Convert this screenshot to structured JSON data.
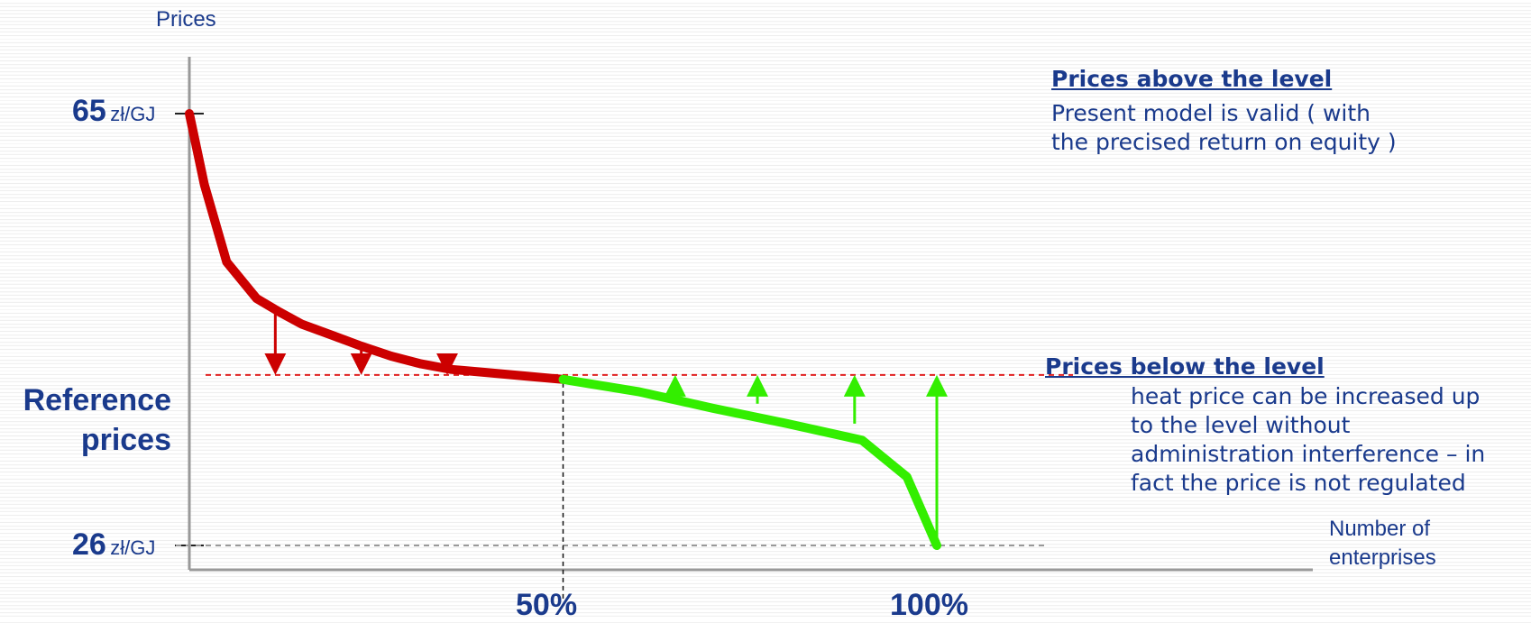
{
  "chart_data": {
    "type": "line",
    "ylabel": "Prices",
    "xlabel": "Number of enterprises",
    "y_ticks": [
      {
        "value": 65,
        "label": "65",
        "unit": "zł/GJ"
      },
      {
        "value": 26,
        "label": "26",
        "unit": "zł/GJ"
      }
    ],
    "x_ticks": [
      {
        "value": 50,
        "label": "50%"
      },
      {
        "value": 100,
        "label": "100%"
      }
    ],
    "xlim": [
      0,
      150
    ],
    "ylim": [
      22,
      70
    ],
    "reference": {
      "value": 41.4,
      "label_lines": [
        "Reference",
        "prices"
      ]
    },
    "series": [
      {
        "color": "#cc0000",
        "x": [
          0,
          2,
          5,
          9,
          12,
          15,
          19,
          23,
          27,
          31,
          35,
          40,
          45,
          50
        ],
        "y": [
          65,
          58.6,
          51.6,
          48.3,
          47.1,
          46.0,
          45.0,
          44.0,
          43.1,
          42.4,
          41.9,
          41.6,
          41.3,
          41.0
        ]
      },
      {
        "color": "#33ee00",
        "x": [
          50,
          60,
          70,
          80,
          90,
          96,
          100
        ],
        "y": [
          41.0,
          39.9,
          38.4,
          37.0,
          35.5,
          32.2,
          26.0
        ]
      }
    ],
    "arrows_down": [
      {
        "x": 11.5,
        "y_from": 47.2,
        "y_to": 41.4
      },
      {
        "x": 23,
        "y_from": 44.0,
        "y_to": 41.4
      },
      {
        "x": 34.5,
        "y_from": 42.0,
        "y_to": 41.4
      }
    ],
    "arrows_up": [
      {
        "x": 65,
        "y_from": 40.5,
        "y_to": 41.4
      },
      {
        "x": 76,
        "y_from": 38.8,
        "y_to": 41.4
      },
      {
        "x": 89,
        "y_from": 37.0,
        "y_to": 41.4
      },
      {
        "x": 100,
        "y_from": 26.0,
        "y_to": 41.4
      }
    ],
    "colors": {
      "axis": "#999999",
      "text": "#1a3a8c",
      "reference_line": "#e02020",
      "down": "#cc0000",
      "up": "#33ee00"
    }
  },
  "notes": {
    "above": {
      "title": "Prices above the level",
      "lines": [
        "Present model is valid ( with",
        "the precised return on equity )"
      ]
    },
    "below": {
      "title": "Prices below the level",
      "lines": [
        "heat price can be increased up",
        "to the level without",
        "administration interference – in",
        "fact the price is not regulated"
      ]
    }
  },
  "x_axis_caption": [
    "Number of",
    "enterprises"
  ]
}
